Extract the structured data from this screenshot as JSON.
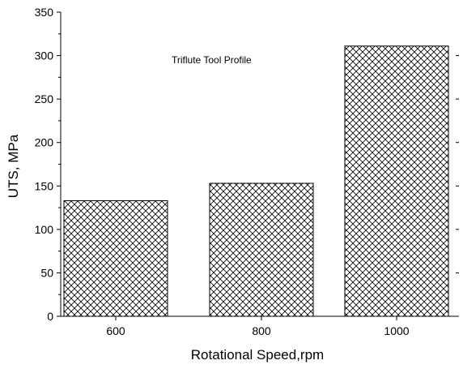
{
  "chart_data": {
    "type": "bar",
    "categories": [
      "600",
      "800",
      "1000"
    ],
    "values": [
      133,
      153,
      311
    ],
    "title": "",
    "annotation": "Triflute Tool Profile",
    "xlabel": "Rotational Speed,rpm",
    "ylabel": "UTS, MPa",
    "ylim": [
      0,
      350
    ],
    "yticks": [
      "0",
      "50",
      "100",
      "150",
      "200",
      "250",
      "300",
      "350"
    ],
    "grid": false,
    "legend": "none",
    "bar_fill": "crosshatch",
    "colors": {
      "axis": "#000000",
      "bar_stroke": "#000000",
      "hatch": "#000000",
      "background": "#ffffff"
    }
  }
}
